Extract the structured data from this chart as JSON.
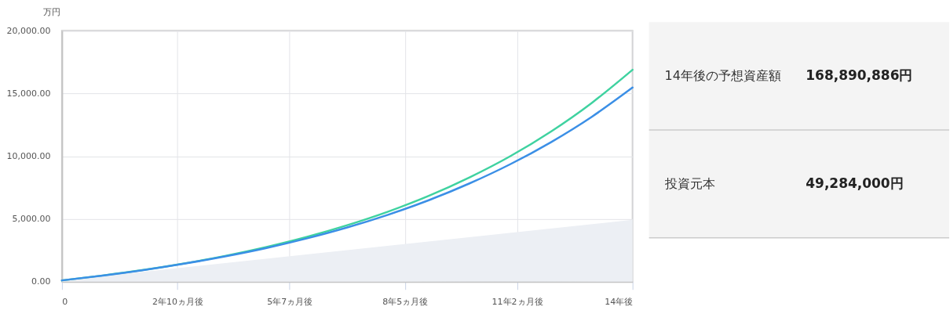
{
  "chart_data": [
    {
      "type": "line",
      "ylabel": "万円",
      "xlim": [
        0,
        14
      ],
      "xticks": [
        0,
        {
          "value": 2.8333,
          "label": "2年10ヵ月後"
        },
        {
          "value": 5.5833,
          "label": "5年7ヵ月後"
        },
        {
          "value": 8.4167,
          "label": "8年5ヵ月後"
        },
        {
          "value": 11.1667,
          "label": "11年2ヵ月後"
        },
        {
          "value": 14,
          "label": "14年後"
        }
      ],
      "ylim": [
        0,
        20000
      ],
      "yticks": [
        {
          "value": 0,
          "label": "0.00"
        },
        {
          "value": 5000,
          "label": "5,000.00"
        },
        {
          "value": 10000,
          "label": "10,000.00"
        },
        {
          "value": 15000,
          "label": "15,000.00"
        },
        {
          "value": 20000,
          "label": "20,000.00"
        }
      ],
      "grid": true,
      "series": [
        {
          "type": "area",
          "color": "#eceff4",
          "x": [
            0,
            14
          ],
          "values": [
            100,
            4930
          ]
        },
        {
          "color": "#3fd2a0",
          "x": [
            0,
            1,
            2,
            3,
            4,
            5,
            6,
            7,
            8,
            9,
            10,
            11,
            12,
            13,
            14
          ],
          "values": [
            100,
            490,
            930,
            1450,
            2050,
            2750,
            3560,
            4500,
            5580,
            6840,
            8310,
            10000,
            11970,
            14250,
            16890
          ]
        },
        {
          "color": "#3b8fe6",
          "x": [
            0,
            1,
            2,
            3,
            4,
            5,
            6,
            7,
            8,
            9,
            10,
            11,
            12,
            13,
            14
          ],
          "values": [
            100,
            480,
            920,
            1430,
            2010,
            2670,
            3440,
            4320,
            5330,
            6490,
            7830,
            9360,
            11120,
            13140,
            15470
          ]
        }
      ]
    },
    {
      "type": "other",
      "annotations": [
        "14年後の予想資産額",
        "168,890,886円",
        "投資元本",
        "49,284,000円"
      ]
    }
  ]
}
